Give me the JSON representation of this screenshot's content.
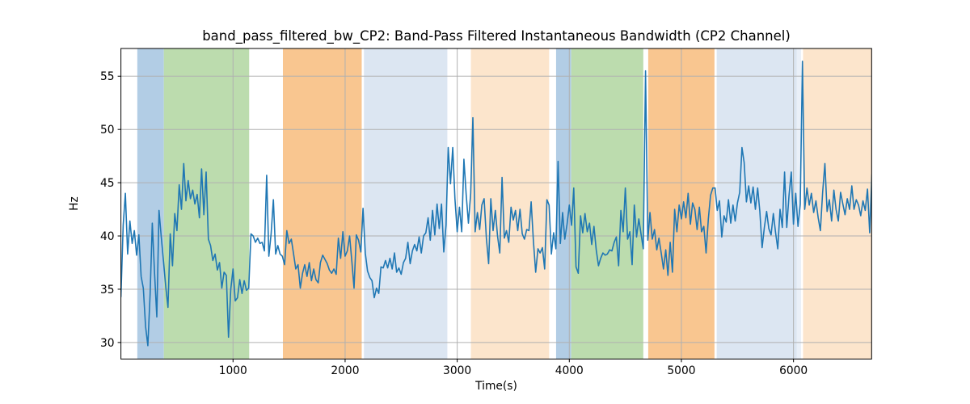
{
  "chart_data": {
    "type": "line",
    "title": "band_pass_filtered_bw_CP2: Band-Pass Filtered Instantaneous Bandwidth (CP2 Channel)",
    "xlabel": "Time(s)",
    "ylabel": "Hz",
    "xlim": [
      0,
      6697
    ],
    "ylim": [
      28.45,
      57.6
    ],
    "xticks": [
      1000,
      2000,
      3000,
      4000,
      5000,
      6000
    ],
    "yticks": [
      30,
      35,
      40,
      45,
      50,
      55
    ],
    "grid": true,
    "legend_position": "none",
    "colors": {
      "line": "#1f77b4",
      "grid": "#b0b0b0",
      "spine": "#000000",
      "background": "#ffffff",
      "band_blue": "#b2cde5",
      "band_green": "#bcdcae",
      "band_orange": "#f9c690",
      "band_lightblue": "#dce6f2",
      "band_lightorange": "#fce5cc",
      "band_lightblue_faint": "#eaf0f8"
    },
    "highlight_bands": [
      {
        "t0": 146,
        "t1": 383,
        "color": "#b2cde5",
        "name": "blue"
      },
      {
        "t0": 383,
        "t1": 1144,
        "color": "#bcdcae",
        "name": "green"
      },
      {
        "t0": 1445,
        "t1": 2148,
        "color": "#f9c690",
        "name": "orange"
      },
      {
        "t0": 2168,
        "t1": 2912,
        "color": "#dce6f2",
        "name": "light-blue"
      },
      {
        "t0": 3122,
        "t1": 3820,
        "color": "#fce5cc",
        "name": "light-orange"
      },
      {
        "t0": 3882,
        "t1": 4017,
        "color": "#b2cde5",
        "name": "blue"
      },
      {
        "t0": 4017,
        "t1": 4660,
        "color": "#bcdcae",
        "name": "green"
      },
      {
        "t0": 4704,
        "t1": 5295,
        "color": "#f9c690",
        "name": "orange"
      },
      {
        "t0": 5315,
        "t1": 6030,
        "color": "#dce6f2",
        "name": "light-blue"
      },
      {
        "t0": 6030,
        "t1": 6068,
        "color": "#eaf0f8",
        "name": "light-blue-faint"
      },
      {
        "t0": 6085,
        "t1": 6697,
        "color": "#fce5cc",
        "name": "light-orange"
      }
    ],
    "series": [
      {
        "name": "band_pass_filtered_bw_CP2",
        "unit": "Hz",
        "t_start": 0,
        "t_step": 20,
        "values": [
          34.3,
          41.0,
          44.0,
          38.3,
          41.4,
          39.3,
          40.5,
          38.2,
          40.1,
          36.2,
          35.1,
          31.5,
          29.7,
          34.5,
          41.2,
          36.5,
          32.4,
          42.4,
          39.9,
          37.6,
          35.2,
          33.3,
          40.2,
          37.2,
          42.1,
          40.5,
          44.8,
          42.5,
          46.8,
          43.3,
          45.2,
          43.5,
          44.3,
          43.0,
          43.9,
          41.7,
          46.3,
          42.0,
          46.0,
          39.7,
          39.1,
          37.7,
          38.3,
          36.8,
          37.5,
          35.1,
          36.6,
          36.3,
          30.5,
          35.0,
          36.9,
          33.9,
          34.2,
          35.9,
          34.6,
          35.8,
          34.9,
          35.1,
          40.2,
          40.0,
          39.4,
          39.8,
          39.3,
          39.4,
          38.6,
          45.7,
          38.1,
          40.2,
          43.4,
          38.3,
          39.1,
          38.3,
          38.1,
          37.3,
          40.5,
          39.3,
          39.7,
          38.3,
          36.9,
          37.3,
          35.1,
          36.5,
          37.3,
          36.2,
          37.5,
          35.8,
          36.9,
          35.9,
          35.6,
          37.5,
          38.2,
          37.8,
          37.4,
          36.8,
          36.5,
          36.9,
          36.4,
          39.8,
          37.9,
          40.4,
          38.1,
          38.6,
          40.0,
          37.6,
          35.1,
          40.1,
          39.6,
          38.5,
          42.6,
          38.4,
          36.7,
          36.1,
          35.8,
          34.2,
          35.1,
          34.6,
          37.1,
          37.0,
          37.7,
          37.0,
          37.9,
          36.9,
          38.4,
          36.6,
          37.0,
          36.4,
          37.5,
          37.9,
          39.4,
          37.4,
          38.6,
          39.2,
          38.6,
          39.9,
          38.4,
          40.0,
          40.3,
          41.7,
          39.6,
          42.4,
          40.1,
          43.0,
          40.7,
          43.0,
          38.5,
          41.0,
          48.3,
          44.9,
          48.3,
          43.5,
          40.4,
          42.7,
          40.4,
          47.2,
          43.9,
          41.2,
          44.0,
          51.1,
          40.4,
          42.2,
          40.6,
          42.9,
          43.5,
          39.8,
          37.4,
          43.5,
          40.5,
          42.4,
          40.0,
          38.4,
          45.5,
          39.8,
          40.5,
          39.4,
          42.7,
          41.5,
          42.4,
          40.5,
          42.5,
          40.2,
          39.7,
          40.6,
          40.5,
          43.2,
          39.5,
          36.6,
          38.8,
          38.4,
          38.9,
          36.9,
          43.4,
          42.9,
          38.3,
          40.3,
          38.8,
          47.0,
          39.3,
          42.2,
          39.7,
          41.1,
          42.9,
          41.0,
          44.5,
          37.1,
          36.5,
          41.9,
          40.3,
          42.1,
          40.4,
          41.2,
          39.2,
          40.9,
          38.7,
          37.2,
          37.9,
          38.4,
          38.2,
          38.3,
          38.7,
          38.6,
          39.4,
          39.9,
          37.2,
          42.4,
          40.4,
          44.5,
          39.7,
          40.4,
          37.3,
          42.9,
          39.9,
          41.6,
          40.2,
          38.8,
          55.5,
          39.6,
          42.2,
          39.7,
          40.6,
          38.7,
          39.8,
          38.4,
          36.9,
          38.7,
          36.3,
          39.4,
          36.6,
          42.5,
          40.4,
          42.9,
          41.6,
          43.2,
          41.7,
          44.0,
          41.1,
          43.1,
          42.5,
          40.6,
          42.7,
          40.4,
          40.9,
          38.4,
          41.6,
          43.8,
          44.5,
          44.5,
          42.4,
          43.3,
          39.9,
          41.9,
          41.3,
          43.4,
          41.2,
          42.9,
          41.4,
          43.1,
          44.1,
          48.3,
          46.9,
          43.2,
          44.7,
          43.1,
          44.6,
          42.5,
          44.5,
          42.3,
          38.9,
          40.8,
          42.3,
          40.7,
          40.1,
          42.1,
          40.3,
          38.8,
          42.5,
          40.8,
          46.0,
          40.8,
          43.8,
          46.0,
          41.1,
          44.0,
          40.9,
          43.0,
          56.4,
          42.5,
          44.5,
          42.9,
          44.0,
          42.2,
          43.3,
          41.7,
          40.5,
          44.1,
          46.8,
          42.3,
          43.4,
          41.4,
          44.3,
          42.5,
          41.4,
          44.1,
          43.0,
          42.0,
          43.5,
          42.5,
          44.7,
          42.5,
          43.4,
          42.9,
          41.9,
          43.3,
          42.4,
          44.4,
          40.3,
          45.8
        ]
      }
    ]
  }
}
